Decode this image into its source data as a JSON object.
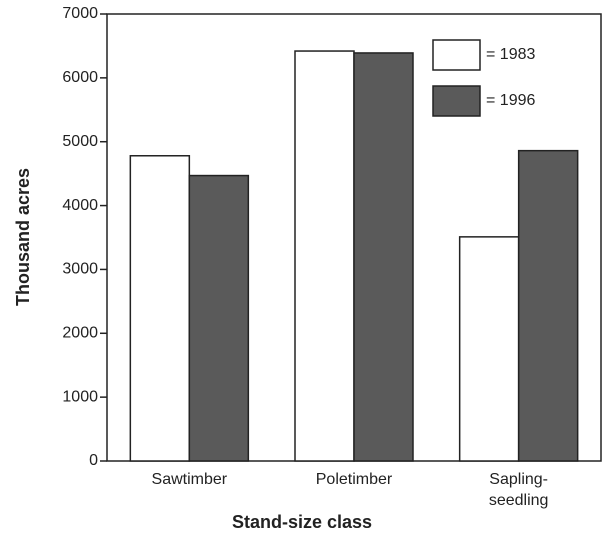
{
  "chart_data": {
    "type": "bar",
    "categories": [
      "Sawtimber",
      "Poletimber",
      "Sapling-\nseedling"
    ],
    "series": [
      {
        "name": "= 1983",
        "color": "#ffffff",
        "values": [
          4780,
          6420,
          3510
        ]
      },
      {
        "name": "= 1996",
        "color": "#5a5a5a",
        "values": [
          4470,
          6390,
          4860
        ]
      }
    ],
    "xlabel": "Stand-size class",
    "ylabel": "Thousand acres",
    "ylim": [
      0,
      7000
    ],
    "yticks": [
      0,
      1000,
      2000,
      3000,
      4000,
      5000,
      6000,
      7000
    ],
    "legend": "upper right"
  }
}
